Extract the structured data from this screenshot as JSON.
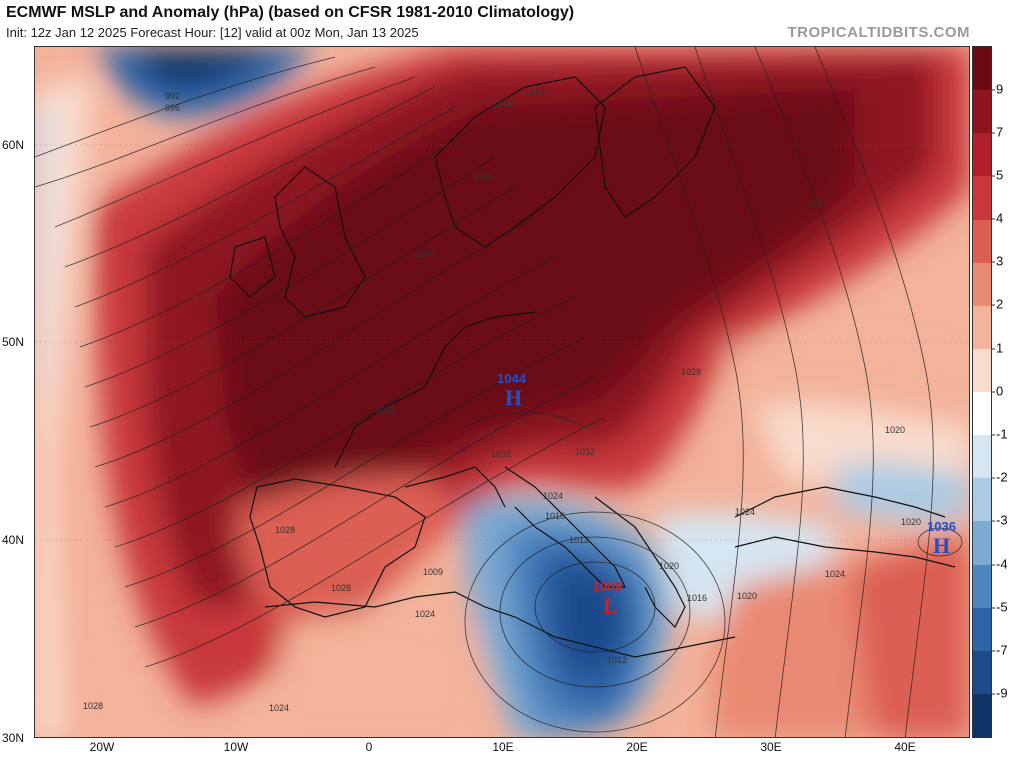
{
  "header": {
    "title": "ECMWF MSLP and Anomaly (hPa) (based on CFSR 1981-2010 Climatology)",
    "subtitle": "Init: 12z Jan 12 2025   Forecast Hour: [12]   valid at 00z Mon, Jan 13 2025",
    "credit": "TROPICALTIDBITS.COM"
  },
  "axes": {
    "lat_labels": [
      "60N",
      "50N",
      "40N",
      "30N"
    ],
    "lon_labels": [
      "20W",
      "10W",
      "0",
      "10E",
      "20E",
      "30E",
      "40E"
    ]
  },
  "colorbar": {
    "ticks": [
      "9",
      "7",
      "5",
      "4",
      "3",
      "2",
      "1",
      "0",
      "-1",
      "-2",
      "-3",
      "-4",
      "-5",
      "-7",
      "-9"
    ],
    "colors": [
      "#6b0a12",
      "#8e1520",
      "#b01f2a",
      "#c8383a",
      "#dc5e52",
      "#e98a72",
      "#f3b29a",
      "#f9dccd",
      "#ffffff",
      "#d6e6f2",
      "#abcbe4",
      "#7daad3",
      "#4f86bf",
      "#2f64a8",
      "#1d4a8c",
      "#103468"
    ]
  },
  "isobar_labels": [
    "992",
    "996",
    "1044",
    "1040",
    "1036",
    "1028",
    "1032",
    "1024",
    "1020",
    "1016",
    "1012",
    "1009",
    "1036",
    "1040",
    "1028",
    "1024",
    "1024",
    "1020",
    "1020",
    "1020",
    "1016",
    "1024",
    "1028",
    "1024",
    "1028",
    "1032",
    "1024",
    "1032",
    "1028"
  ],
  "pressure_centers": {
    "high_main": {
      "letter": "H",
      "value": "1044"
    },
    "low_main": {
      "letter": "L",
      "value": "1009"
    },
    "high_east": {
      "letter": "H",
      "value": "1036"
    }
  }
}
